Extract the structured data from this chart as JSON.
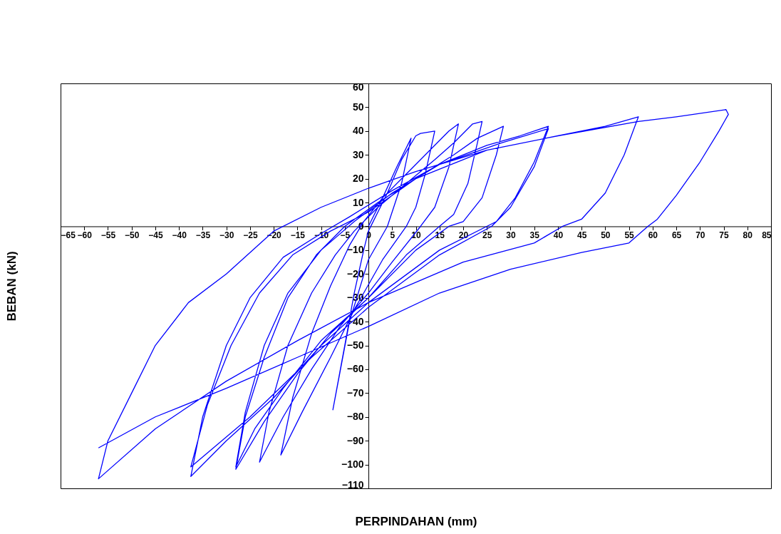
{
  "chart_data": {
    "type": "line",
    "xlabel": "PERPINDAHAN (mm)",
    "ylabel": "BEBAN (kN)",
    "xlim": [
      -65,
      85
    ],
    "ylim": [
      -110,
      60
    ],
    "xticks": [
      -65,
      -60,
      -55,
      -50,
      -45,
      -40,
      -35,
      -30,
      -25,
      -20,
      -15,
      -10,
      -5,
      0,
      5,
      10,
      15,
      20,
      25,
      30,
      35,
      40,
      45,
      50,
      55,
      60,
      65,
      70,
      75,
      80,
      85
    ],
    "yticks": [
      -110,
      -100,
      -90,
      -80,
      -70,
      -60,
      -50,
      -40,
      -30,
      -20,
      -10,
      0,
      10,
      20,
      30,
      40,
      50,
      60
    ],
    "grid": false,
    "legend": false,
    "marker": "none",
    "line_style": "solid",
    "series": [
      {
        "color": "#0000ff",
        "x": [
          0,
          3,
          6,
          9,
          7,
          4,
          0,
          -4,
          -7.5,
          -5,
          -3,
          -1,
          0,
          4,
          7,
          10,
          11,
          14,
          12,
          10,
          8,
          3,
          -3,
          -8,
          -14,
          -18.5,
          -16,
          -12,
          -8,
          -4,
          -1,
          3,
          8,
          13,
          17,
          19,
          17,
          14,
          11,
          5,
          0,
          -6,
          -12,
          -18,
          -23,
          -21,
          -17,
          -12,
          -7,
          -3,
          2,
          8,
          14,
          18,
          22,
          24,
          23,
          21,
          18,
          15,
          8,
          0,
          -8,
          -15,
          -22,
          -28,
          -26,
          -22,
          -17,
          -11,
          -5,
          2,
          10,
          18,
          23,
          28.5,
          27,
          24,
          20,
          17,
          10,
          0,
          -10,
          -18,
          -24,
          -28,
          -26,
          -22,
          -17,
          -10,
          -3,
          5,
          15,
          25,
          32,
          38,
          35,
          31,
          27,
          25,
          15,
          0,
          -10,
          -20,
          -30,
          -37.5,
          -35,
          -30,
          -25,
          -18,
          -10,
          -4,
          5,
          15,
          28,
          38,
          35,
          30,
          26,
          15,
          0,
          -12,
          -25,
          -37.5,
          -34,
          -29,
          -23,
          -16,
          -8,
          0,
          10,
          25,
          40,
          50,
          57,
          54,
          50,
          45,
          41,
          35,
          20,
          0,
          -15,
          -30,
          -45,
          -57,
          -55,
          -50,
          -45,
          -38,
          -30,
          -20,
          -10,
          0,
          10,
          25,
          40,
          57,
          65,
          75.5,
          76,
          74,
          70,
          65,
          61,
          59,
          55,
          45,
          30,
          15,
          0,
          -15,
          -30,
          -45,
          -57
        ],
        "values": [
          0,
          12,
          25,
          37,
          18,
          0,
          -14,
          -40,
          -77,
          -50,
          -28,
          -10,
          -2,
          14,
          28,
          38,
          39,
          40,
          22,
          8,
          0,
          -14,
          -35,
          -55,
          -78,
          -96,
          -72,
          -45,
          -25,
          -8,
          2,
          12,
          22,
          32,
          40,
          43,
          25,
          8,
          0,
          -15,
          -28,
          -42,
          -60,
          -80,
          -99,
          -78,
          -50,
          -28,
          -12,
          -2,
          8,
          18,
          28,
          35,
          43,
          44,
          35,
          18,
          5,
          0,
          -12,
          -30,
          -45,
          -62,
          -82,
          -102,
          -80,
          -55,
          -30,
          -12,
          0,
          10,
          20,
          30,
          37,
          42,
          30,
          12,
          2,
          0,
          -10,
          -30,
          -48,
          -68,
          -85,
          -101,
          -78,
          -50,
          -28,
          -10,
          2,
          14,
          26,
          34,
          38,
          42,
          27,
          12,
          2,
          0,
          -10,
          -32,
          -50,
          -72,
          -90,
          -105,
          -80,
          -50,
          -30,
          -13,
          -3,
          4,
          15,
          26,
          35,
          41,
          25,
          8,
          0,
          -12,
          -34,
          -55,
          -80,
          -101,
          -75,
          -50,
          -28,
          -12,
          -2,
          6,
          20,
          32,
          38,
          42,
          46,
          30,
          14,
          3,
          0,
          -7,
          -15,
          -32,
          -48,
          -65,
          -85,
          -106,
          -90,
          -70,
          -50,
          -32,
          -20,
          -2,
          8,
          16,
          23,
          32,
          38,
          44,
          46,
          49,
          47,
          40,
          27,
          13,
          3,
          0,
          -7,
          -11,
          -18,
          -28,
          -42,
          -55,
          -68,
          -80,
          -93
        ]
      }
    ]
  }
}
